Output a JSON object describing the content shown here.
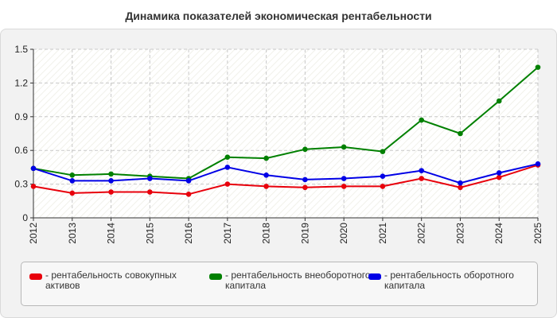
{
  "chart_data": {
    "type": "line",
    "title": "Динамика показателей экономическая рентабельности",
    "x": [
      "2012",
      "2013",
      "2014",
      "2015",
      "2016",
      "2017",
      "2018",
      "2019",
      "2020",
      "2021",
      "2022",
      "2023",
      "2024",
      "2025"
    ],
    "yticks": [
      "0",
      "0.3",
      "0.6",
      "0.9",
      "1.2",
      "1.5"
    ],
    "ylim": [
      0,
      1.5
    ],
    "grid": true,
    "legend_position": "bottom",
    "series": [
      {
        "name": "- рентабельность совокупных активов",
        "color": "#e8000b",
        "values": [
          0.28,
          0.22,
          0.23,
          0.23,
          0.21,
          0.3,
          0.28,
          0.27,
          0.28,
          0.28,
          0.35,
          0.27,
          0.36,
          0.47
        ]
      },
      {
        "name": "- рентабельность внеоборотного капитала",
        "color": "#008000",
        "values": [
          0.44,
          0.38,
          0.39,
          0.37,
          0.35,
          0.54,
          0.53,
          0.61,
          0.63,
          0.59,
          0.87,
          0.75,
          1.04,
          1.34
        ]
      },
      {
        "name": "- рентабельность оборотного капитала",
        "color": "#0000e6",
        "values": [
          0.44,
          0.33,
          0.33,
          0.35,
          0.33,
          0.45,
          0.38,
          0.34,
          0.35,
          0.37,
          0.42,
          0.31,
          0.4,
          0.48
        ]
      }
    ]
  }
}
